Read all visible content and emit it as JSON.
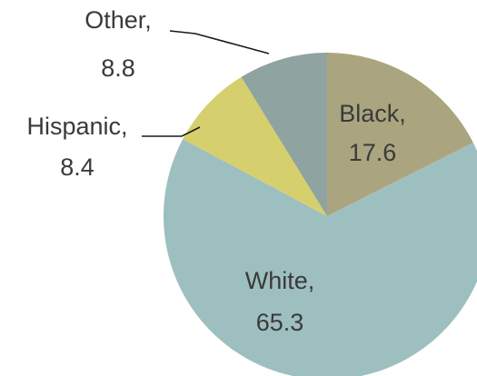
{
  "chart_data": {
    "type": "pie",
    "title": "",
    "slices": [
      {
        "label": "Black",
        "value": 17.6,
        "value_text": "17.6",
        "color": "#AAA57E"
      },
      {
        "label": "White",
        "value": 65.3,
        "value_text": "65.3",
        "color": "#9EBFBF"
      },
      {
        "label": "Hispanic",
        "value": 8.4,
        "value_text": "8.4",
        "color": "#D6CF6E"
      },
      {
        "label": "Other",
        "value": 8.8,
        "value_text": "8.8",
        "color": "#8FA3A0"
      }
    ],
    "start_angle": "12 o'clock",
    "direction": "clockwise",
    "legend": "none",
    "data_labels": "category and value"
  }
}
